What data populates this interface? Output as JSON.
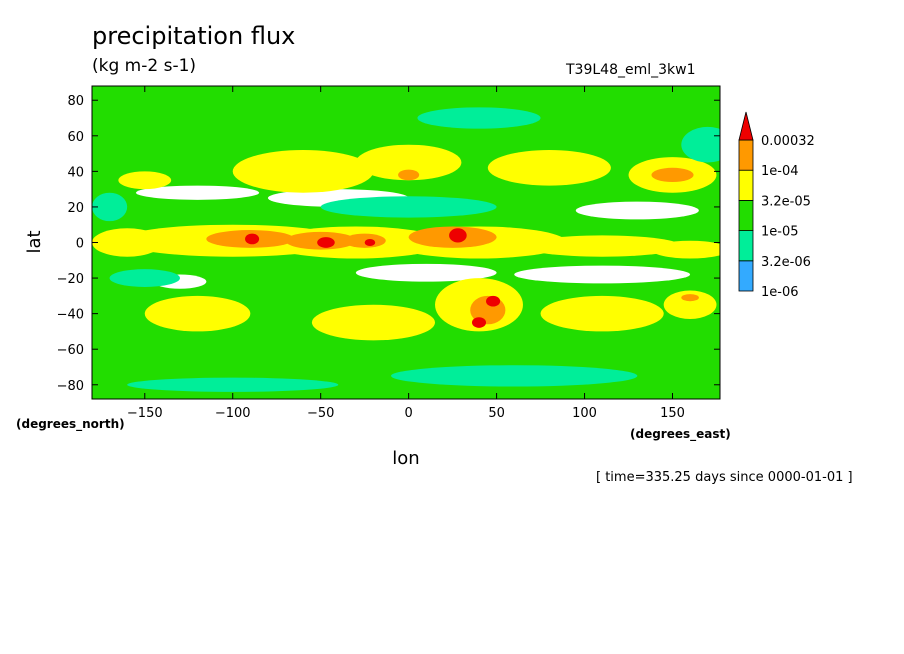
{
  "chart_data": {
    "type": "heatmap",
    "title": "precipitation flux",
    "units": "(kg m-2 s-1)",
    "run_label": "T39L48_eml_3kw1",
    "time_label": "[ time=335.25 days since 0000-01-01 ]",
    "xlabel": "lon",
    "ylabel": "lat",
    "x_units": "(degrees_east)",
    "y_units": "(degrees_north)",
    "xlim": [
      -180,
      177
    ],
    "ylim": [
      -88,
      88
    ],
    "x_ticks": [
      -150,
      -100,
      -50,
      0,
      50,
      100,
      150
    ],
    "x_tick_labels": [
      "−150",
      "−100",
      "−50",
      "0",
      "50",
      "100",
      "150"
    ],
    "y_ticks": [
      80,
      60,
      40,
      20,
      0,
      -20,
      -40,
      -60,
      -80
    ],
    "y_tick_labels": [
      "80",
      "60",
      "40",
      "20",
      "0",
      "−20",
      "−40",
      "−60",
      "−80"
    ],
    "colorbar": {
      "levels": [
        "1e-06",
        "3.2e-06",
        "1e-05",
        "3.2e-05",
        "1e-04",
        "0.00032"
      ],
      "colors": [
        "#33aaff",
        "#00ee99",
        "#22dd00",
        "#ffff00",
        "#ff9900",
        "#ee0000"
      ],
      "below_color": "#ffffff"
    },
    "background_color": "#22dd00",
    "features": [
      {
        "lon": -160,
        "lat": 0,
        "rx": 20,
        "ry": 8,
        "level": 3
      },
      {
        "lon": -100,
        "lat": 1,
        "rx": 65,
        "ry": 9,
        "level": 3
      },
      {
        "lon": -30,
        "lat": 0,
        "rx": 50,
        "ry": 9,
        "level": 3
      },
      {
        "lon": 40,
        "lat": 0,
        "rx": 50,
        "ry": 9,
        "level": 3
      },
      {
        "lon": 110,
        "lat": -2,
        "rx": 45,
        "ry": 6,
        "level": 3
      },
      {
        "lon": 160,
        "lat": -4,
        "rx": 22,
        "ry": 5,
        "level": 3
      },
      {
        "lon": -90,
        "lat": 2,
        "rx": 25,
        "ry": 5,
        "level": 4
      },
      {
        "lon": -50,
        "lat": 1,
        "rx": 20,
        "ry": 5,
        "level": 4
      },
      {
        "lon": -25,
        "lat": 1,
        "rx": 12,
        "ry": 4,
        "level": 4
      },
      {
        "lon": 25,
        "lat": 3,
        "rx": 25,
        "ry": 6,
        "level": 4
      },
      {
        "lon": -89,
        "lat": 2,
        "rx": 4,
        "ry": 3,
        "level": 5
      },
      {
        "lon": -47,
        "lat": 0,
        "rx": 5,
        "ry": 3,
        "level": 5
      },
      {
        "lon": -22,
        "lat": 0,
        "rx": 3,
        "ry": 2,
        "level": 5
      },
      {
        "lon": 28,
        "lat": 4,
        "rx": 5,
        "ry": 4,
        "level": 5
      },
      {
        "lon": -120,
        "lat": 28,
        "rx": 35,
        "ry": 4,
        "level": -1
      },
      {
        "lon": -40,
        "lat": 25,
        "rx": 40,
        "ry": 5,
        "level": -1
      },
      {
        "lon": 130,
        "lat": 18,
        "rx": 35,
        "ry": 5,
        "level": -1
      },
      {
        "lon": 10,
        "lat": -17,
        "rx": 40,
        "ry": 5,
        "level": -1
      },
      {
        "lon": 110,
        "lat": -18,
        "rx": 50,
        "ry": 5,
        "level": -1
      },
      {
        "lon": -130,
        "lat": -22,
        "rx": 15,
        "ry": 4,
        "level": -1
      },
      {
        "lon": -60,
        "lat": 40,
        "rx": 40,
        "ry": 12,
        "level": 3
      },
      {
        "lon": 0,
        "lat": 45,
        "rx": 30,
        "ry": 10,
        "level": 3
      },
      {
        "lon": 80,
        "lat": 42,
        "rx": 35,
        "ry": 10,
        "level": 3
      },
      {
        "lon": 150,
        "lat": 38,
        "rx": 25,
        "ry": 10,
        "level": 3
      },
      {
        "lon": -150,
        "lat": 35,
        "rx": 15,
        "ry": 5,
        "level": 3
      },
      {
        "lon": 150,
        "lat": 38,
        "rx": 12,
        "ry": 4,
        "level": 4
      },
      {
        "lon": 0,
        "lat": 38,
        "rx": 6,
        "ry": 3,
        "level": 4
      },
      {
        "lon": 40,
        "lat": -35,
        "rx": 25,
        "ry": 15,
        "level": 3
      },
      {
        "lon": -120,
        "lat": -40,
        "rx": 30,
        "ry": 10,
        "level": 3
      },
      {
        "lon": -20,
        "lat": -45,
        "rx": 35,
        "ry": 10,
        "level": 3
      },
      {
        "lon": 110,
        "lat": -40,
        "rx": 35,
        "ry": 10,
        "level": 3
      },
      {
        "lon": 160,
        "lat": -35,
        "rx": 15,
        "ry": 8,
        "level": 3
      },
      {
        "lon": 45,
        "lat": -38,
        "rx": 10,
        "ry": 8,
        "level": 4
      },
      {
        "lon": 48,
        "lat": -33,
        "rx": 4,
        "ry": 3,
        "level": 5
      },
      {
        "lon": 40,
        "lat": -45,
        "rx": 4,
        "ry": 3,
        "level": 5
      },
      {
        "lon": 160,
        "lat": -31,
        "rx": 5,
        "ry": 2,
        "level": 4
      },
      {
        "lon": -170,
        "lat": 20,
        "rx": 10,
        "ry": 8,
        "level": 1
      },
      {
        "lon": 40,
        "lat": 70,
        "rx": 35,
        "ry": 6,
        "level": 1
      },
      {
        "lon": -150,
        "lat": -20,
        "rx": 20,
        "ry": 5,
        "level": 1
      },
      {
        "lon": 170,
        "lat": 55,
        "rx": 15,
        "ry": 10,
        "level": 1
      },
      {
        "lon": -100,
        "lat": -80,
        "rx": 60,
        "ry": 4,
        "level": 1
      },
      {
        "lon": 60,
        "lat": -75,
        "rx": 70,
        "ry": 6,
        "level": 1
      },
      {
        "lon": 0,
        "lat": 20,
        "rx": 50,
        "ry": 6,
        "level": 1
      }
    ]
  }
}
